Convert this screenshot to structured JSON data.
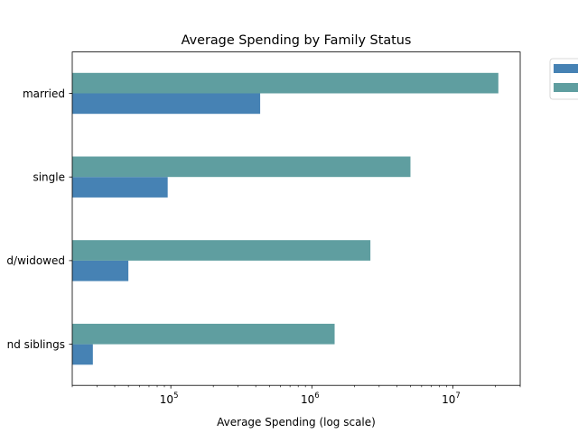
{
  "chart_data": {
    "type": "bar",
    "orientation": "horizontal",
    "title": "Average Spending by Family Status",
    "xlabel": "Average Spending (log scale)",
    "ylabel": "",
    "x_scale": "log",
    "xlim": [
      20000,
      30000000
    ],
    "categories": [
      "married",
      "single",
      "divorced/widowed",
      "with parents and siblings"
    ],
    "category_labels_visible": [
      "married",
      "single",
      "d/widowed",
      "nd siblings"
    ],
    "x_ticks": [
      {
        "base": "10",
        "exp": "5",
        "value": 100000
      },
      {
        "base": "10",
        "exp": "6",
        "value": 1000000
      },
      {
        "base": "10",
        "exp": "7",
        "value": 10000000
      }
    ],
    "series": [
      {
        "color": "#4682b4",
        "values": [
          430000,
          95000,
          50000,
          28000
        ]
      },
      {
        "color": "#5f9ea0",
        "values": [
          21000000,
          5000000,
          2600000,
          1450000
        ]
      }
    ],
    "grid": false,
    "legend": {
      "placement": "outside-top-right",
      "entries": [
        "",
        ""
      ]
    }
  }
}
